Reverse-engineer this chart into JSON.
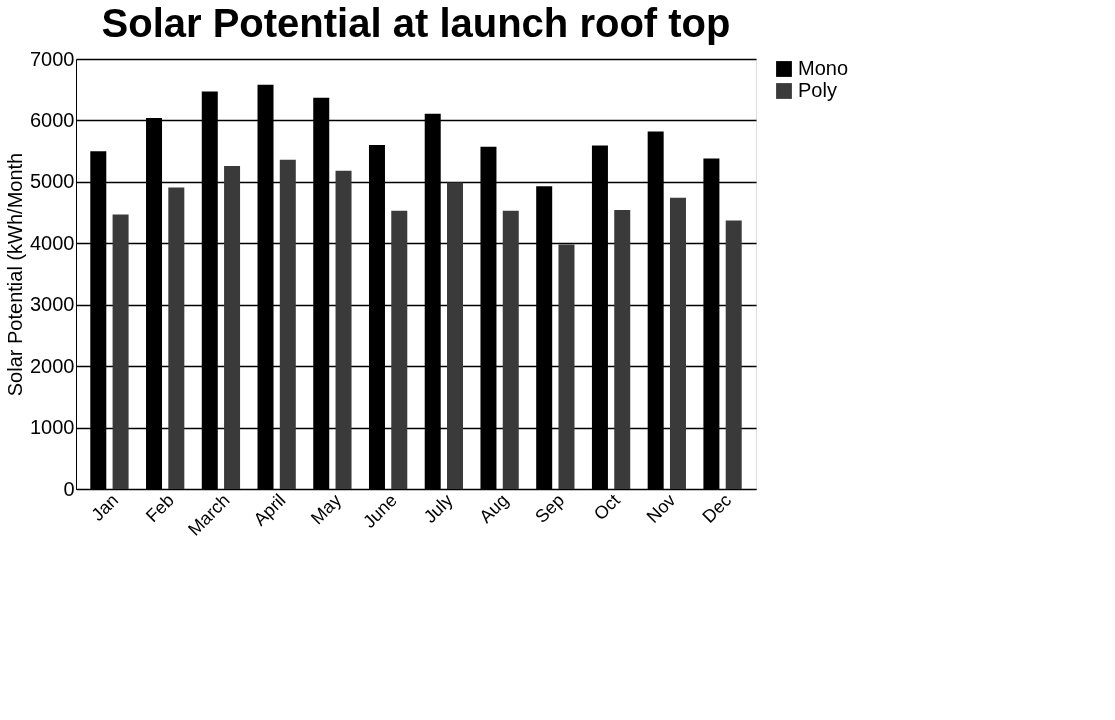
{
  "chart_data": {
    "type": "bar",
    "title": "Solar Potential at launch roof top",
    "ylabel": "Solar   Potential  (kWh/Month",
    "categories": [
      "Jan",
      "Feb",
      "March",
      "April",
      "May",
      "June",
      "July",
      "Aug",
      "Sep",
      "Oct",
      "Nov",
      "Dec"
    ],
    "series": [
      {
        "name": "Mono",
        "color": "#000000",
        "values": [
          5500,
          6040,
          6470,
          6580,
          6370,
          5600,
          6110,
          5570,
          4930,
          5590,
          5820,
          5380
        ]
      },
      {
        "name": "Poly",
        "color": "#3a3a3a",
        "values": [
          4470,
          4910,
          5260,
          5360,
          5180,
          4530,
          4990,
          4530,
          3980,
          4540,
          4740,
          4370
        ]
      }
    ],
    "ylim": [
      0,
      7000
    ],
    "yticks": [
      0,
      1000,
      2000,
      3000,
      4000,
      5000,
      6000,
      7000
    ],
    "grid": "y",
    "legend": "right"
  }
}
